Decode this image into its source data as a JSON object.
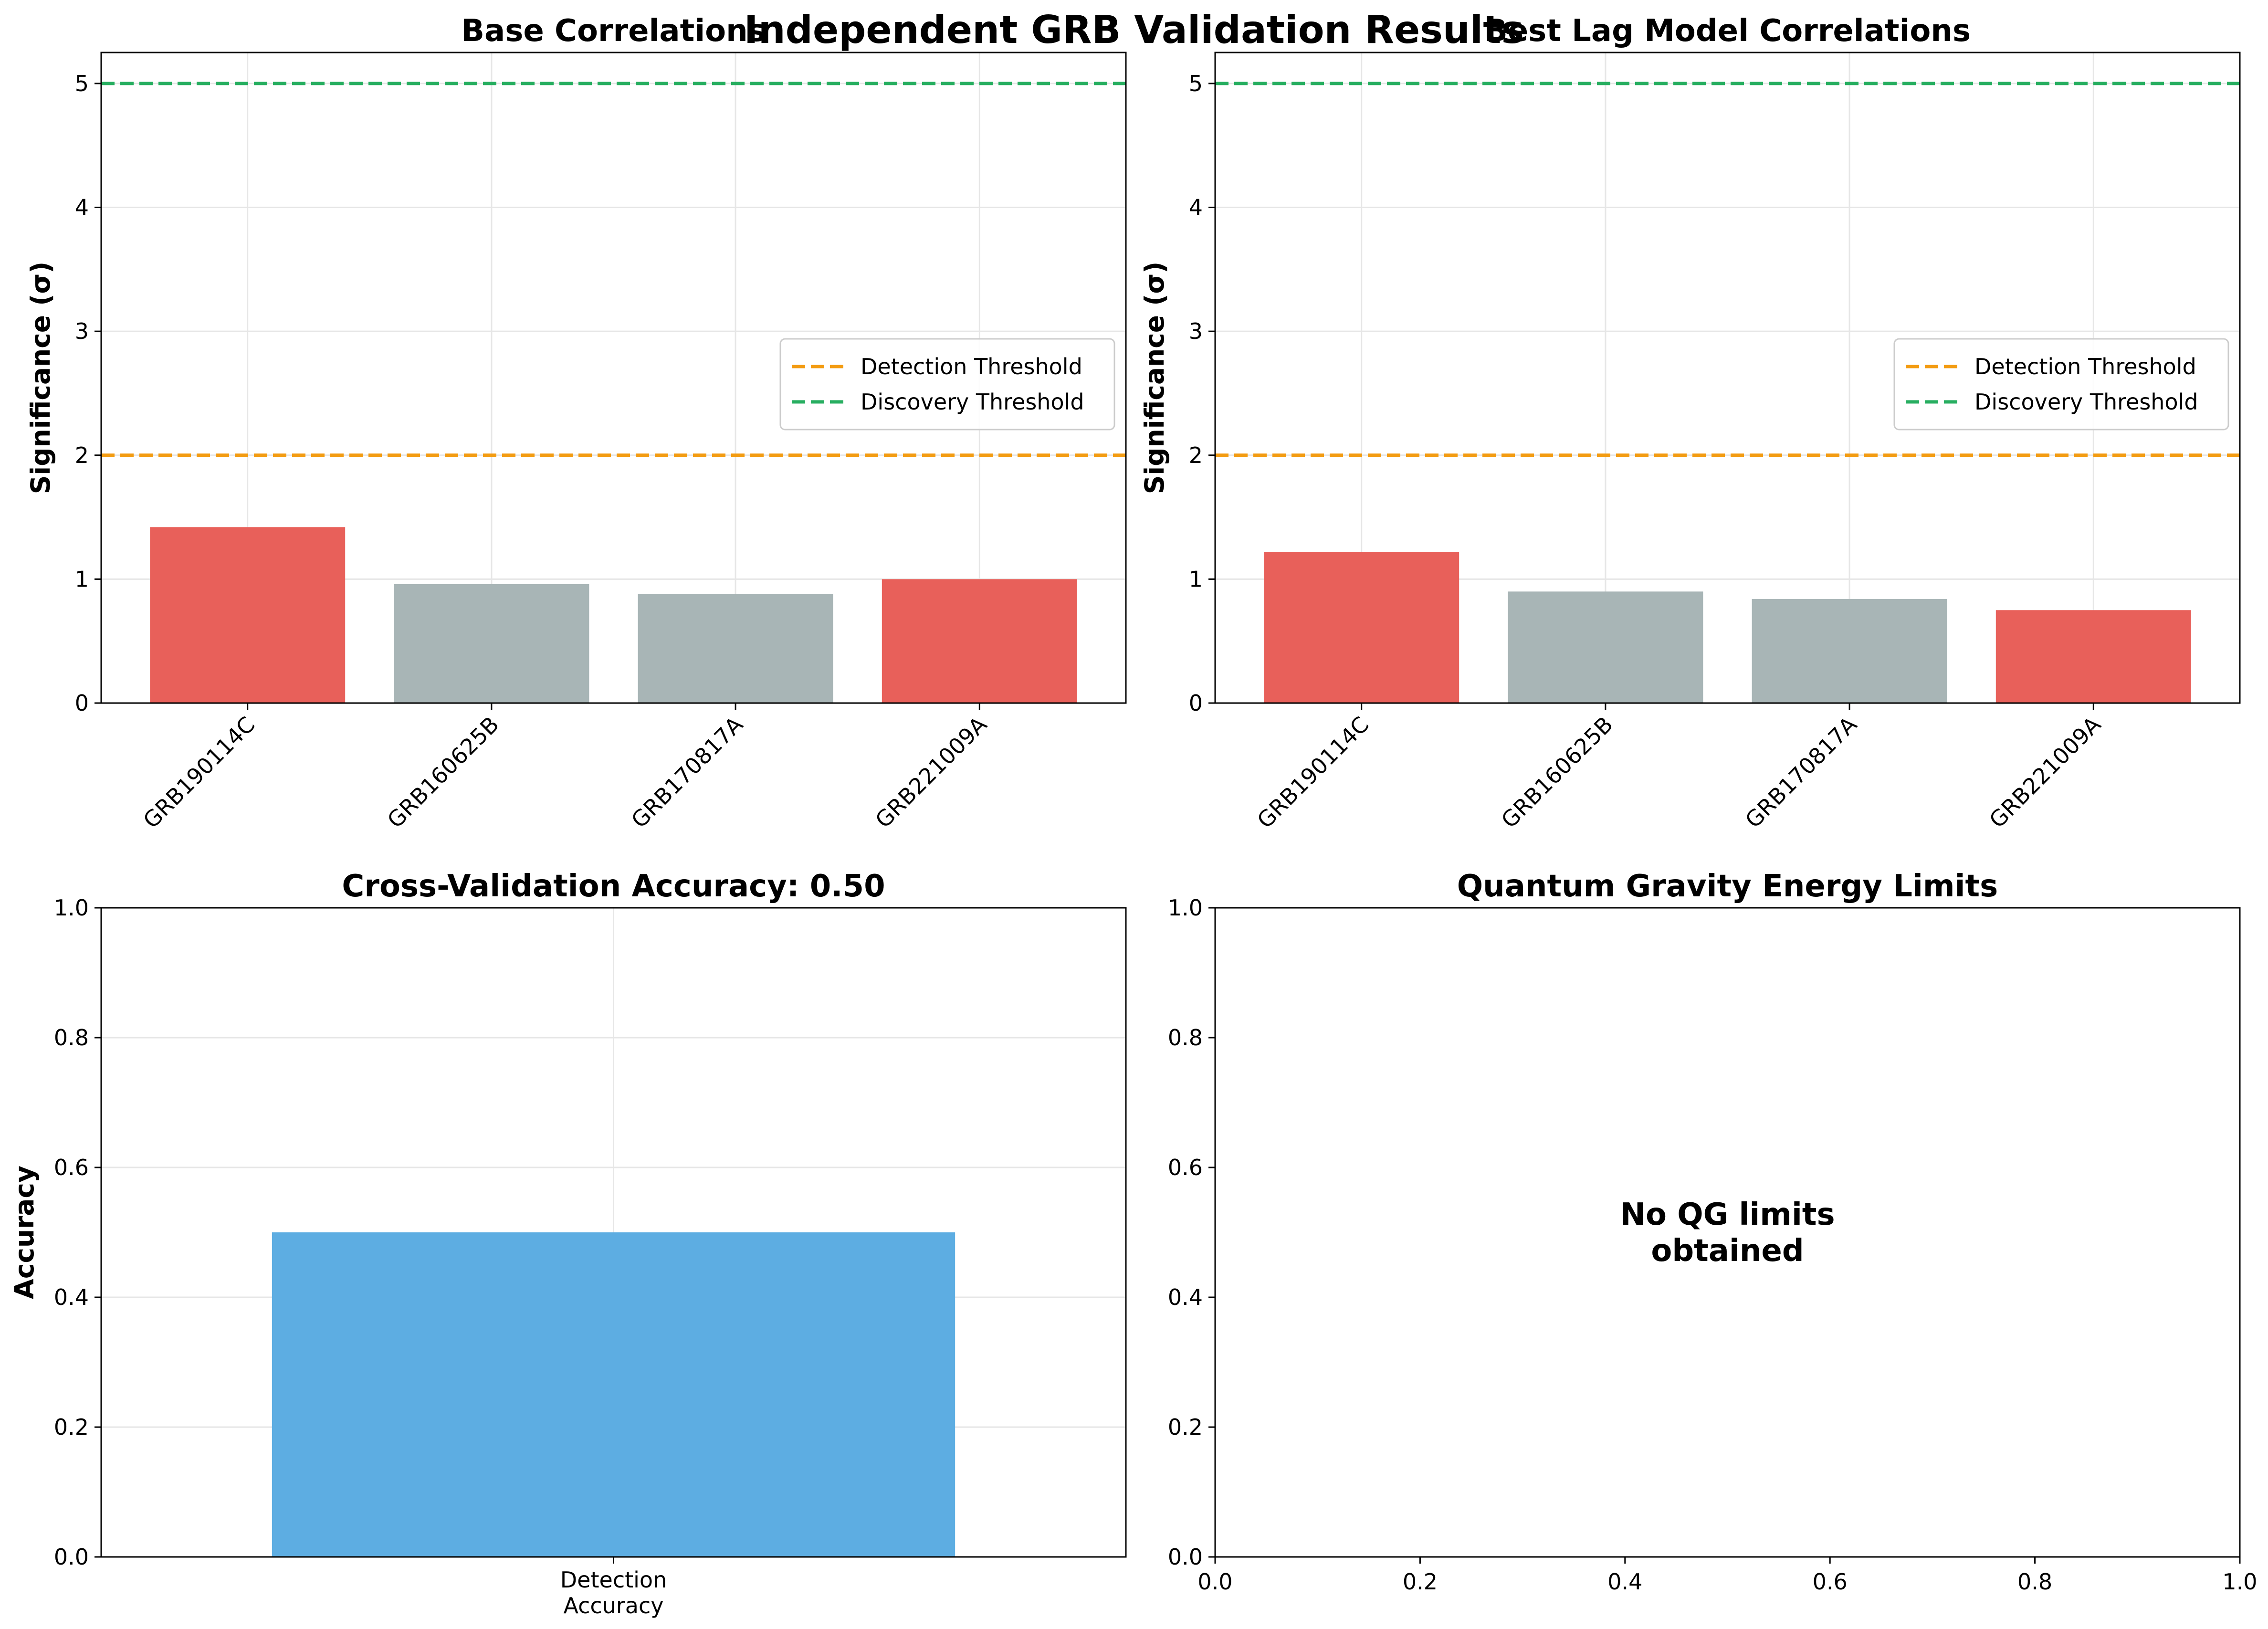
{
  "figure": {
    "suptitle": "Independent GRB Validation Results"
  },
  "legend_labels": {
    "detection": "Detection Threshold",
    "discovery": "Discovery Threshold"
  },
  "colors": {
    "positive_bar": "#e8605a",
    "neutral_bar": "#a8b5b6",
    "accuracy_bar": "#5dade2",
    "detection_line": "#f39c12",
    "discovery_line": "#27ae60",
    "grid": "#e6e6e6"
  },
  "chart_data": [
    {
      "type": "bar",
      "title": "Base Correlations",
      "xlabel": "",
      "ylabel": "Significance (σ)",
      "categories": [
        "GRB190114C",
        "GRB160625B",
        "GRB170817A",
        "GRB221009A"
      ],
      "values": [
        1.42,
        0.96,
        0.88,
        1.0
      ],
      "bar_colors": [
        "#e8605a",
        "#a8b5b6",
        "#a8b5b6",
        "#e8605a"
      ],
      "ylim": [
        0,
        5.25
      ],
      "yticks": [
        0,
        1,
        2,
        3,
        4,
        5
      ],
      "ytick_labels": [
        "0",
        "1",
        "2",
        "3",
        "4",
        "5"
      ],
      "thresholds": [
        {
          "name": "Detection Threshold",
          "value": 2,
          "color": "#f39c12",
          "style": "dashed"
        },
        {
          "name": "Discovery Threshold",
          "value": 5,
          "color": "#27ae60",
          "style": "dashed"
        }
      ],
      "legend": "center-right",
      "grid": true
    },
    {
      "type": "bar",
      "title": "Best Lag Model Correlations",
      "xlabel": "",
      "ylabel": "Significance (σ)",
      "categories": [
        "GRB190114C",
        "GRB160625B",
        "GRB170817A",
        "GRB221009A"
      ],
      "values": [
        1.22,
        0.9,
        0.84,
        0.75
      ],
      "bar_colors": [
        "#e8605a",
        "#a8b5b6",
        "#a8b5b6",
        "#e8605a"
      ],
      "ylim": [
        0,
        5.25
      ],
      "yticks": [
        0,
        1,
        2,
        3,
        4,
        5
      ],
      "ytick_labels": [
        "0",
        "1",
        "2",
        "3",
        "4",
        "5"
      ],
      "thresholds": [
        {
          "name": "Detection Threshold",
          "value": 2,
          "color": "#f39c12",
          "style": "dashed"
        },
        {
          "name": "Discovery Threshold",
          "value": 5,
          "color": "#27ae60",
          "style": "dashed"
        }
      ],
      "legend": "center-right",
      "grid": true
    },
    {
      "type": "bar",
      "title": "Cross-Validation Accuracy: 0.50",
      "xlabel": "",
      "ylabel": "Accuracy",
      "categories": [
        "Detection\nAccuracy"
      ],
      "values": [
        0.5
      ],
      "bar_colors": [
        "#5dade2"
      ],
      "ylim": [
        0,
        1
      ],
      "yticks": [
        0,
        0.2,
        0.4,
        0.6,
        0.8,
        1.0
      ],
      "ytick_labels": [
        "0.0",
        "0.2",
        "0.4",
        "0.6",
        "0.8",
        "1.0"
      ],
      "grid": true
    },
    {
      "type": "scatter",
      "title": "Quantum Gravity Energy Limits",
      "xlabel": "",
      "ylabel": "",
      "x": [],
      "y": [],
      "xlim": [
        0,
        1
      ],
      "ylim": [
        0,
        1
      ],
      "xticks": [
        0,
        0.2,
        0.4,
        0.6,
        0.8,
        1.0
      ],
      "xtick_labels": [
        "0.0",
        "0.2",
        "0.4",
        "0.6",
        "0.8",
        "1.0"
      ],
      "yticks": [
        0,
        0.2,
        0.4,
        0.6,
        0.8,
        1.0
      ],
      "ytick_labels": [
        "0.0",
        "0.2",
        "0.4",
        "0.6",
        "0.8",
        "1.0"
      ],
      "annotation": "No QG limits\nobtained",
      "grid": false
    }
  ]
}
